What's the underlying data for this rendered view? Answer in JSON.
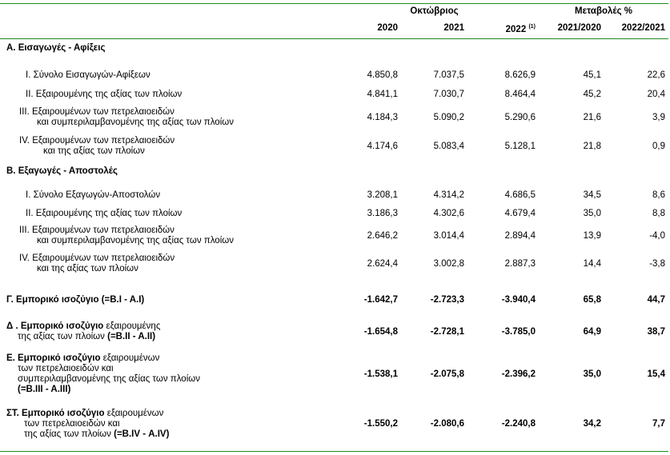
{
  "top_char": "'",
  "header": {
    "group_october": "Οκτώβριος",
    "group_changes": "Μεταβολές %",
    "col_2020": "2020",
    "col_2021": "2021",
    "col_2022": "2022",
    "col_2022_note": "(1)",
    "col_ch1": "2021/2020",
    "col_ch2": "2022/2021"
  },
  "sections": {
    "a_title": "Α. Εισαγωγές - Αφίξεις",
    "b_title": "Β. Εξαγωγές - Αποστολές"
  },
  "rows": {
    "a1": {
      "label": "I.  Σύνολο Εισαγωγών-Αφίξεων",
      "v2020": "4.850,8",
      "v2021": "7.037,5",
      "v2022": "8.626,9",
      "ch1": "45,1",
      "ch2": "22,6"
    },
    "a2": {
      "label": "II.  Εξαιρουμένης της αξίας των πλοίων",
      "v2020": "4.841,1",
      "v2021": "7.030,7",
      "v2022": "8.464,4",
      "ch1": "45,2",
      "ch2": "20,4"
    },
    "a3": {
      "label1": "III. Εξαιρουμένων των πετρελαιοειδών",
      "label2": "και συμπεριλαμβανομένης της αξίας των πλοίων",
      "v2020": "4.184,3",
      "v2021": "5.090,2",
      "v2022": "5.290,6",
      "ch1": "21,6",
      "ch2": "3,9"
    },
    "a4": {
      "label1": "IV. Εξαιρουμένων των πετρελαιοειδών",
      "label2": "και  της αξίας των πλοίων",
      "v2020": "4.174,6",
      "v2021": "5.083,4",
      "v2022": "5.128,1",
      "ch1": "21,8",
      "ch2": "0,9"
    },
    "b1": {
      "label": "I.  Σύνολο Εξαγωγών-Αποστολών",
      "v2020": "3.208,1",
      "v2021": "4.314,2",
      "v2022": "4.686,5",
      "ch1": "34,5",
      "ch2": "8,6"
    },
    "b2": {
      "label": "II.  Εξαιρουμένης της αξίας των πλοίων",
      "v2020": "3.186,3",
      "v2021": "4.302,6",
      "v2022": "4.679,4",
      "ch1": "35,0",
      "ch2": "8,8"
    },
    "b3": {
      "label1": "III. Εξαιρουμένων των πετρελαιοειδών",
      "label2": "και συμπεριλαμβανομένης της αξίας των πλοίων",
      "v2020": "2.646,2",
      "v2021": "3.014,4",
      "v2022": "2.894,4",
      "ch1": "13,9",
      "ch2": "-4,0"
    },
    "b4": {
      "label1": "IV.  Εξαιρουμένων των πετρελαιοειδών",
      "label2": "και της αξίας των πλοίων",
      "v2020": "2.624,4",
      "v2021": "3.002,8",
      "v2022": "2.887,3",
      "ch1": "14,4",
      "ch2": "-3,8"
    },
    "g": {
      "label": "Γ. Εμπορικό ισοζύγιο (=Β.Ι - Α.Ι)",
      "v2020": "-1.642,7",
      "v2021": "-2.723,3",
      "v2022": "-3.940,4",
      "ch1": "65,8",
      "ch2": "44,7"
    },
    "d": {
      "label1_bold": "Δ . Εμπορικό ισοζύγιο",
      "label1_rest": " εξαιρουμένης",
      "label2_rest": "της αξίας των πλοίων ",
      "label2_bold": "(=Β.ΙΙ - Α.ΙΙ)",
      "v2020": "-1.654,8",
      "v2021": "-2.728,1",
      "v2022": "-3.785,0",
      "ch1": "64,9",
      "ch2": "38,7"
    },
    "e": {
      "label1_bold": "Ε. Εμπορικό ισοζύγιο",
      "label1_rest": " εξαιρουμένων",
      "label2": "των πετρελαιοειδών και",
      "label3": "συμπεριλαμβανομένης της αξίας των πλοίων",
      "label4_bold": "(=Β.ΙΙΙ - Α.ΙΙΙ)",
      "v2020": "-1.538,1",
      "v2021": "-2.075,8",
      "v2022": "-2.396,2",
      "ch1": "35,0",
      "ch2": "15,4"
    },
    "st": {
      "label1_bold": "ΣΤ. Εμπορικό ισοζύγιο",
      "label1_rest": " εξαιρουμένων",
      "label2": "των πετρελαιοειδών και",
      "label3_rest": "της αξίας των πλοίων ",
      "label3_bold": "(=Β.ΙV - Α.ΙV)",
      "v2020": "-1.550,2",
      "v2021": "-2.080,6",
      "v2022": "-2.240,8",
      "ch1": "34,2",
      "ch2": "7,7"
    }
  }
}
